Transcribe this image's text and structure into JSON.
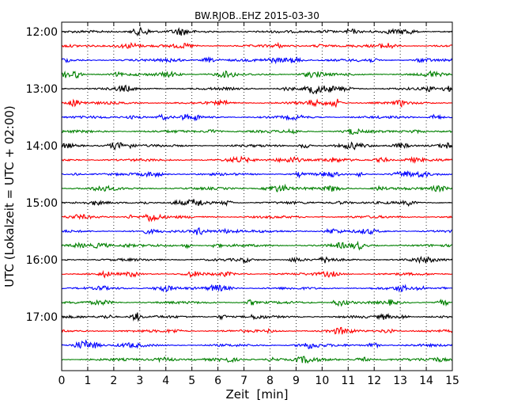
{
  "chart_data": {
    "type": "line",
    "title": "BW.RJOB..EHZ 2015-03-30",
    "xlabel": "Zeit  [min]",
    "ylabel": "UTC (Lokalzeit = UTC + 02:00)",
    "xlim": [
      0,
      15
    ],
    "x_ticks": [
      "0",
      "1",
      "2",
      "3",
      "4",
      "5",
      "6",
      "7",
      "8",
      "9",
      "10",
      "11",
      "12",
      "13",
      "14",
      "15"
    ],
    "y_tick_labels": [
      "12:00",
      "13:00",
      "14:00",
      "15:00",
      "16:00",
      "17:00"
    ],
    "trace_start_times": [
      "12:00",
      "12:15",
      "12:30",
      "12:45",
      "13:00",
      "13:15",
      "13:30",
      "13:45",
      "14:00",
      "14:15",
      "14:30",
      "14:45",
      "15:00",
      "15:15",
      "15:30",
      "15:45",
      "16:00",
      "16:15",
      "16:30",
      "16:45",
      "17:00",
      "17:15",
      "17:30",
      "17:45"
    ],
    "trace_colors": [
      "#000000",
      "#ff0000",
      "#0000ff",
      "#008000"
    ],
    "minutes_per_trace": 15,
    "grid": "vertical-dotted"
  }
}
